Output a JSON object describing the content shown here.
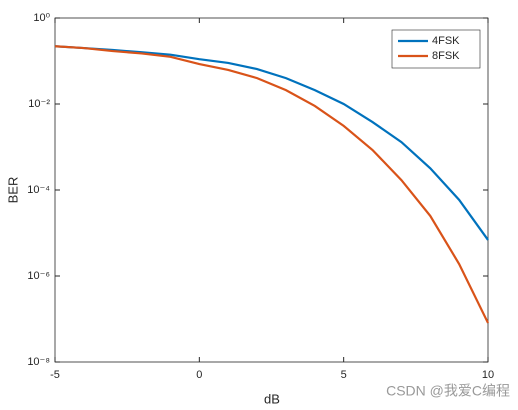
{
  "chart_data": {
    "type": "line",
    "xlabel": "dB",
    "ylabel": "BER",
    "x": [
      -5,
      -4,
      -3,
      -2,
      -1,
      0,
      1,
      2,
      3,
      4,
      5,
      6,
      7,
      8,
      9,
      10
    ],
    "series": [
      {
        "name": "4FSK",
        "color": "#0072bd",
        "values": [
          0.22,
          0.2,
          0.18,
          0.16,
          0.14,
          0.11,
          0.09,
          0.065,
          0.04,
          0.021,
          0.01,
          0.0038,
          0.0013,
          0.00032,
          5.9e-05,
          6.9e-06
        ]
      },
      {
        "name": "8FSK",
        "color": "#d95319",
        "values": [
          0.22,
          0.2,
          0.17,
          0.15,
          0.125,
          0.085,
          0.062,
          0.04,
          0.021,
          0.009,
          0.0031,
          0.00085,
          0.00017,
          2.5e-05,
          1.9e-06,
          8.1e-08
        ]
      }
    ],
    "xlim": [
      -5,
      10
    ],
    "xticks": [
      -5,
      0,
      5,
      10
    ],
    "ylim": [
      1e-08,
      1
    ],
    "ylog": true,
    "yticks": [
      {
        "value": 1e-08,
        "label": "10⁻⁸"
      },
      {
        "value": 1e-06,
        "label": "10⁻⁶"
      },
      {
        "value": 0.0001,
        "label": "10⁻⁴"
      },
      {
        "value": 0.01,
        "label": "10⁻²"
      },
      {
        "value": 1,
        "label": "10⁰"
      }
    ],
    "legend": "northeast",
    "grid": false,
    "annotation": "CSDN @我爱C编程"
  }
}
